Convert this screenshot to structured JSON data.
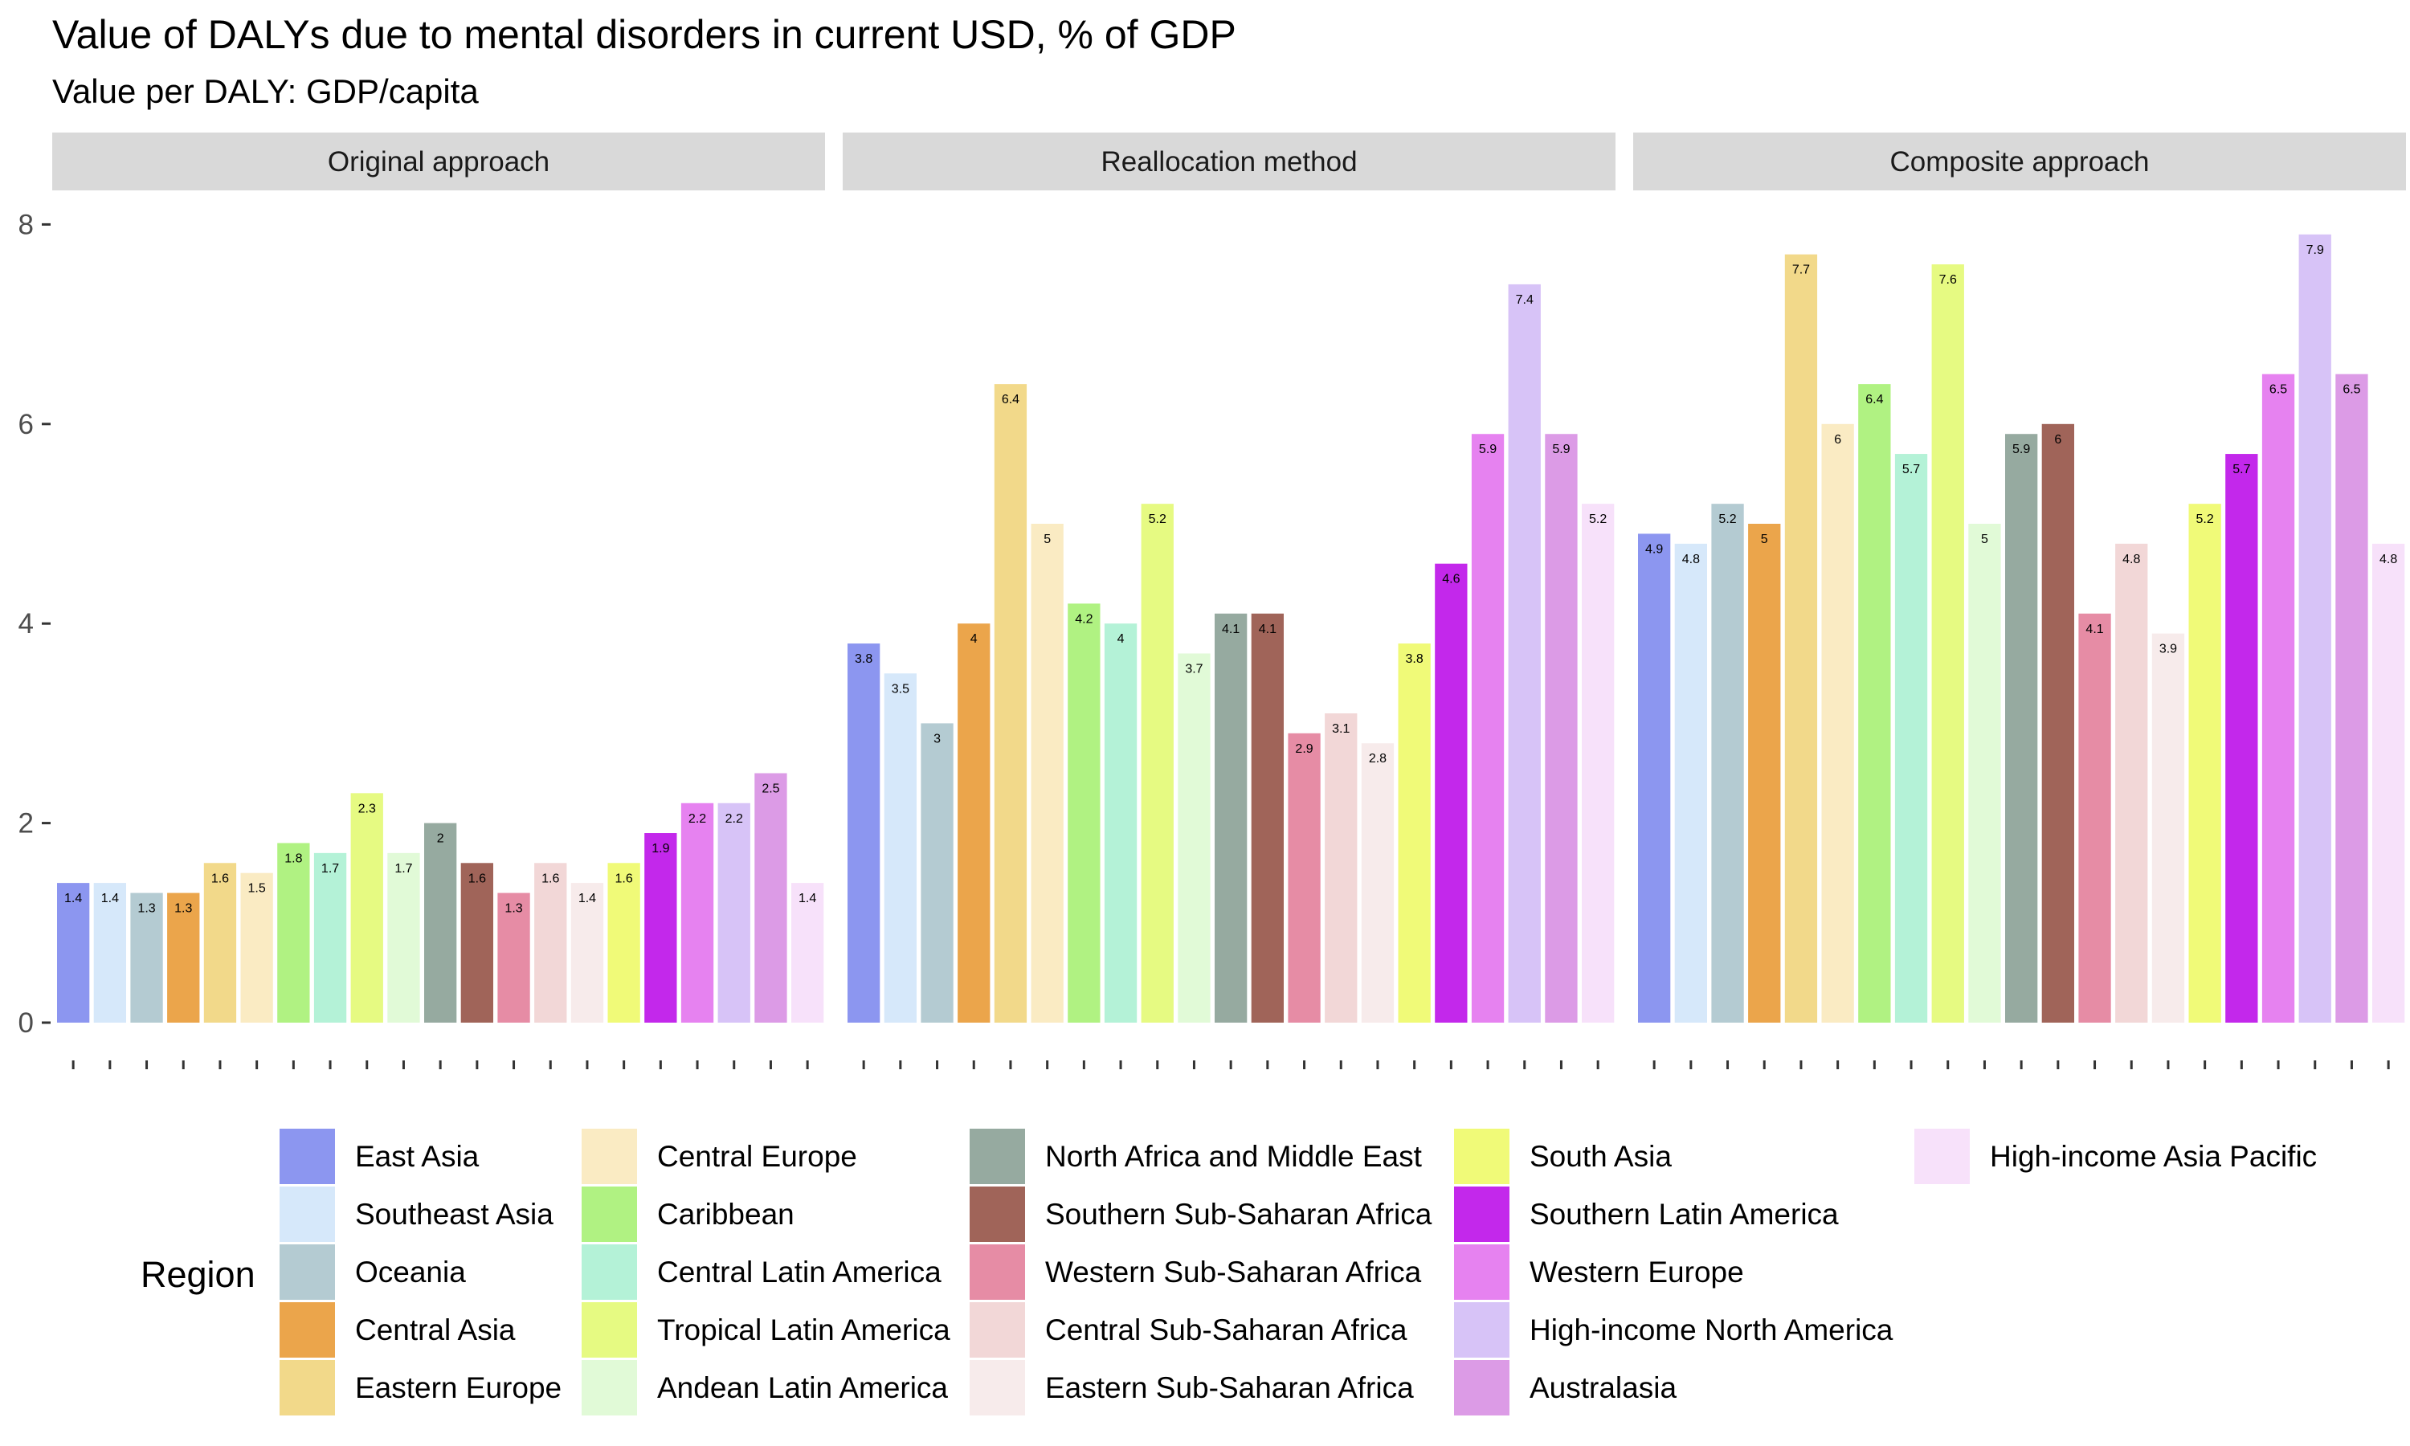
{
  "chart_data": {
    "type": "bar",
    "title": "Value of DALYs due to mental disorders in current USD, % of GDP",
    "subtitle": "Value per DALY: GDP/capita",
    "ylim": [
      0,
      8
    ],
    "yticks": [
      "0",
      "2",
      "4",
      "6",
      "8"
    ],
    "ytick_values": [
      0,
      2,
      4,
      6,
      8
    ],
    "legend": {
      "title": "Region",
      "position": "bottom"
    },
    "regions": [
      {
        "name": "East Asia",
        "color": "#8C96F0"
      },
      {
        "name": "Southeast Asia",
        "color": "#D6E8FA"
      },
      {
        "name": "Oceania",
        "color": "#B4CBD2"
      },
      {
        "name": "Central Asia",
        "color": "#EBA54B"
      },
      {
        "name": "Eastern Europe",
        "color": "#F2D98A"
      },
      {
        "name": "Central Europe",
        "color": "#FAEBC3"
      },
      {
        "name": "Caribbean",
        "color": "#B0F282"
      },
      {
        "name": "Central Latin America",
        "color": "#B4F2D7"
      },
      {
        "name": "Tropical Latin America",
        "color": "#E6FA82"
      },
      {
        "name": "Andean Latin America",
        "color": "#E1FAD7"
      },
      {
        "name": "North Africa and Middle East",
        "color": "#96AAA0"
      },
      {
        "name": "Southern Sub-Saharan Africa",
        "color": "#A06459"
      },
      {
        "name": "Western Sub-Saharan Africa",
        "color": "#E68CA5"
      },
      {
        "name": "Central Sub-Saharan Africa",
        "color": "#F2D7D7"
      },
      {
        "name": "Eastern Sub-Saharan Africa",
        "color": "#F7EBEB"
      },
      {
        "name": "South Asia",
        "color": "#F0FA78"
      },
      {
        "name": "Southern Latin America",
        "color": "#C328EB"
      },
      {
        "name": "Western Europe",
        "color": "#E682F0"
      },
      {
        "name": "High-income North America",
        "color": "#D7C3F7"
      },
      {
        "name": "Australasia",
        "color": "#DC9BE6"
      },
      {
        "name": "High-income Asia Pacific",
        "color": "#F7E1FA"
      }
    ],
    "facets": [
      {
        "label": "Original approach",
        "values": [
          1.4,
          1.4,
          1.3,
          1.3,
          1.6,
          1.5,
          1.8,
          1.7,
          2.3,
          1.7,
          2,
          1.6,
          1.3,
          1.6,
          1.4,
          1.6,
          1.9,
          2.2,
          2.2,
          2.5,
          1.4
        ]
      },
      {
        "label": "Reallocation method",
        "values": [
          3.8,
          3.5,
          3,
          4,
          6.4,
          5,
          4.2,
          4,
          5.2,
          3.7,
          4.1,
          4.1,
          2.9,
          3.1,
          2.8,
          3.8,
          4.6,
          5.9,
          7.4,
          5.9,
          5.2
        ]
      },
      {
        "label": "Composite approach",
        "values": [
          4.9,
          4.8,
          5.2,
          5,
          7.7,
          6,
          6.4,
          5.7,
          7.6,
          5,
          5.9,
          6,
          4.1,
          4.8,
          3.9,
          5.2,
          5.7,
          6.5,
          7.9,
          6.5,
          4.8
        ]
      }
    ]
  }
}
